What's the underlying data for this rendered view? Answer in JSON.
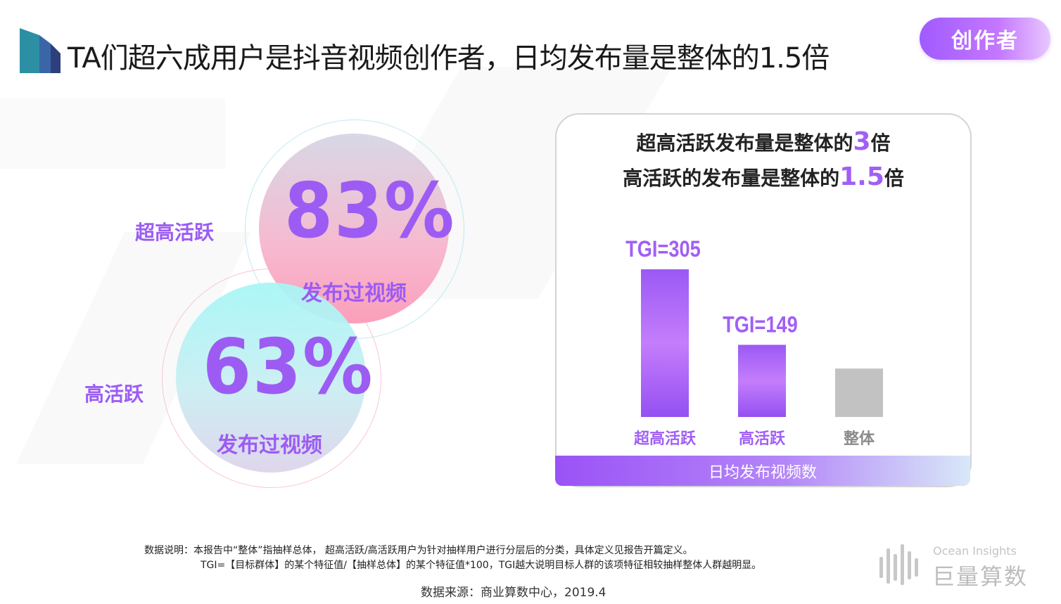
{
  "header": {
    "title": "TA们超六成用户是抖音视频创作者，日均发布量是整体的1.5倍",
    "badge": "创作者"
  },
  "circles": [
    {
      "label": "超高活跃",
      "percent": "83%",
      "caption": "发布过视频"
    },
    {
      "label": "高活跃",
      "percent": "63%",
      "caption": "发布过视频"
    }
  ],
  "card": {
    "line1_pre": "超高活跃发布量是整体的",
    "line1_num": "3",
    "line1_post": "倍",
    "line2_pre": "高活跃的发布量是整体的",
    "line2_num": "1.5",
    "line2_post": "倍",
    "footer": "日均发布视频数"
  },
  "chart_data": {
    "type": "bar",
    "categories": [
      "超高活跃",
      "高活跃",
      "整体"
    ],
    "values": [
      305,
      149,
      100
    ],
    "data_labels": [
      "TGI=305",
      "TGI=149",
      ""
    ],
    "title": "",
    "xlabel": "日均发布视频数",
    "ylabel": "",
    "colors": [
      "#a15ff5",
      "#a15ff5",
      "#c2c2c2"
    ]
  },
  "notes": {
    "line1": "数据说明：本报告中“整体”指抽样总体， 超高活跃/高活跃用户为针对抽样用户进行分层后的分类，具体定义见报告开篇定义。",
    "line2": "TGI=【目标群体】的某个特征值/【抽样总体】的某个特征值*100，TGI越大说明目标人群的该项特征相较抽样整体人群越明显。",
    "source": "数据来源：商业算数中心，2019.4"
  },
  "brand": {
    "en": "Ocean Insights",
    "cn": "巨量算数"
  }
}
